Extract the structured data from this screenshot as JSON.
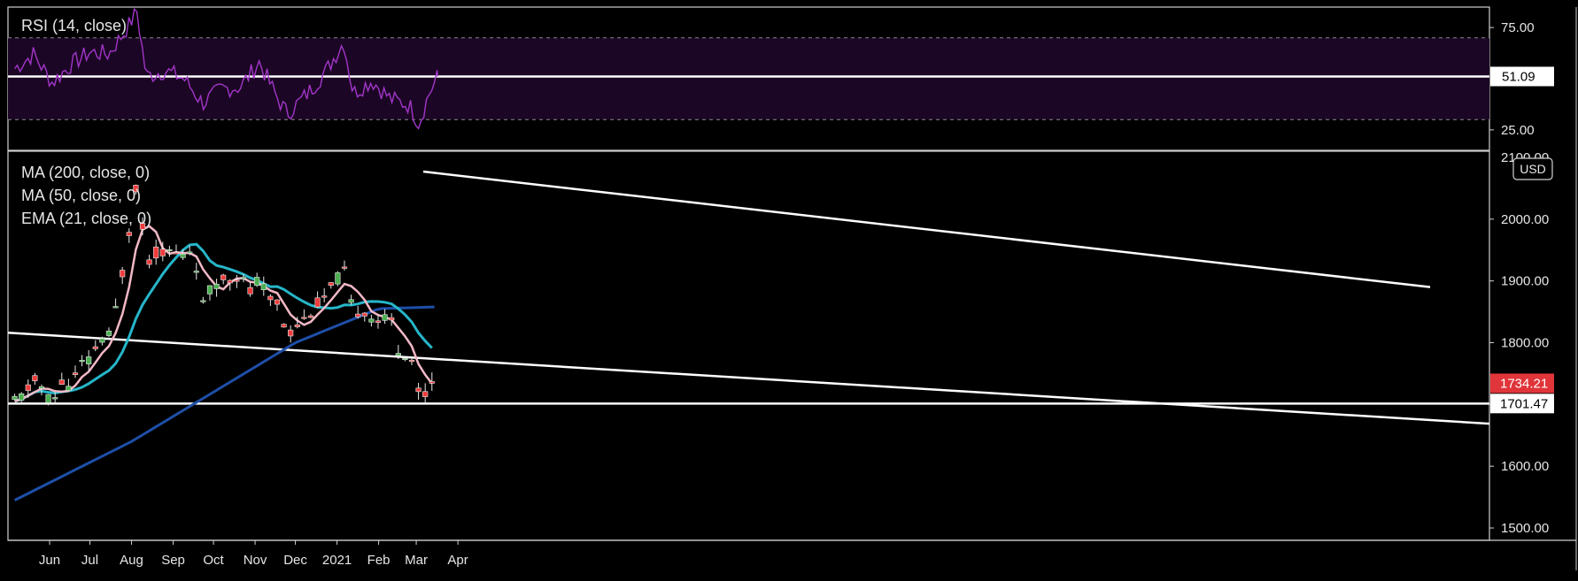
{
  "chart_data": {
    "type": "candlestick",
    "instrument_currency": "USD",
    "price_panel": {
      "indicators": [
        {
          "label": "MA (200, close, 0)",
          "color": "#1e4fa8"
        },
        {
          "label": "MA (50, close, 0)",
          "color": "#26b6c9"
        },
        {
          "label": "EMA (21, close, 0)",
          "color": "#f2b8c6"
        }
      ],
      "ylim": [
        1480,
        2110
      ],
      "y_ticks": [
        "1500.00",
        "1600.00",
        "1700.00",
        "1800.00",
        "1900.00",
        "2000.00"
      ],
      "last_price_label": "1734.21",
      "horizontal_level_label": "1701.47",
      "horizontal_level": 1701.47,
      "channel_upper": [
        [
          0.0,
          2077
        ],
        [
          1.0,
          1890
        ]
      ],
      "channel_lower": [
        [
          -0.95,
          1870
        ],
        [
          1.0,
          1680
        ]
      ],
      "colors": {
        "up": "#4caf50",
        "down": "#ef3b3b",
        "last_price_bg": "#e0353a"
      }
    },
    "rsi_panel": {
      "label": "RSI (14, close)",
      "ylim": [
        15,
        85
      ],
      "y_ticks": [
        "25.00",
        "75.00"
      ],
      "bands": [
        30,
        70
      ],
      "current_value_label": "51.09",
      "current_value": 51.09,
      "color": "#a236c9"
    },
    "x_ticks": [
      "Jun",
      "Jul",
      "Aug",
      "Sep",
      "Oct",
      "Nov",
      "Dec",
      "2021",
      "Feb",
      "Mar",
      "Apr"
    ],
    "series": [
      {
        "name": "price",
        "points": [
          [
            "2020-05-06",
            1705
          ],
          [
            "2020-05-13",
            1715
          ],
          [
            "2020-05-20",
            1740
          ],
          [
            "2020-05-27",
            1725
          ],
          [
            "2020-06-03",
            1700
          ],
          [
            "2020-06-10",
            1735
          ],
          [
            "2020-06-17",
            1730
          ],
          [
            "2020-06-24",
            1765
          ],
          [
            "2020-07-01",
            1770
          ],
          [
            "2020-07-08",
            1805
          ],
          [
            "2020-07-15",
            1810
          ],
          [
            "2020-07-22",
            1870
          ],
          [
            "2020-07-29",
            1965
          ],
          [
            "2020-08-05",
            2065
          ],
          [
            "2020-08-12",
            1930
          ],
          [
            "2020-08-19",
            1945
          ],
          [
            "2020-08-26",
            1950
          ],
          [
            "2020-09-02",
            1945
          ],
          [
            "2020-09-09",
            1940
          ],
          [
            "2020-09-16",
            1955
          ],
          [
            "2020-09-23",
            1860
          ],
          [
            "2020-09-30",
            1890
          ],
          [
            "2020-10-07",
            1905
          ],
          [
            "2020-10-14",
            1905
          ],
          [
            "2020-10-21",
            1910
          ],
          [
            "2020-10-28",
            1880
          ],
          [
            "2020-11-04",
            1905
          ],
          [
            "2020-11-11",
            1870
          ],
          [
            "2020-11-18",
            1865
          ],
          [
            "2020-11-25",
            1810
          ],
          [
            "2020-12-02",
            1830
          ],
          [
            "2020-12-09",
            1840
          ],
          [
            "2020-12-16",
            1860
          ],
          [
            "2020-12-23",
            1875
          ],
          [
            "2020-12-30",
            1895
          ],
          [
            "2021-01-06",
            1920
          ],
          [
            "2021-01-13",
            1845
          ],
          [
            "2021-01-20",
            1855
          ],
          [
            "2021-01-27",
            1840
          ],
          [
            "2021-02-03",
            1835
          ],
          [
            "2021-02-10",
            1840
          ],
          [
            "2021-02-17",
            1775
          ],
          [
            "2021-02-24",
            1790
          ],
          [
            "2021-03-03",
            1715
          ],
          [
            "2021-03-10",
            1720
          ],
          [
            "2021-03-17",
            1734.21
          ]
        ]
      },
      {
        "name": "RSI",
        "points": [
          [
            "2020-05-06",
            55
          ],
          [
            "2020-05-20",
            62
          ],
          [
            "2020-06-03",
            48
          ],
          [
            "2020-06-17",
            57
          ],
          [
            "2020-07-01",
            63
          ],
          [
            "2020-07-15",
            62
          ],
          [
            "2020-07-29",
            75
          ],
          [
            "2020-08-05",
            83
          ],
          [
            "2020-08-12",
            51
          ],
          [
            "2020-08-26",
            54
          ],
          [
            "2020-09-09",
            50
          ],
          [
            "2020-09-23",
            38
          ],
          [
            "2020-10-07",
            45
          ],
          [
            "2020-10-21",
            46
          ],
          [
            "2020-11-04",
            58
          ],
          [
            "2020-11-18",
            40
          ],
          [
            "2020-11-25",
            33
          ],
          [
            "2020-12-09",
            42
          ],
          [
            "2020-12-23",
            53
          ],
          [
            "2021-01-06",
            68
          ],
          [
            "2021-01-13",
            43
          ],
          [
            "2021-01-27",
            49
          ],
          [
            "2021-02-10",
            40
          ],
          [
            "2021-02-24",
            37
          ],
          [
            "2021-03-03",
            28
          ],
          [
            "2021-03-10",
            42
          ],
          [
            "2021-03-17",
            51.09
          ]
        ]
      }
    ]
  }
}
